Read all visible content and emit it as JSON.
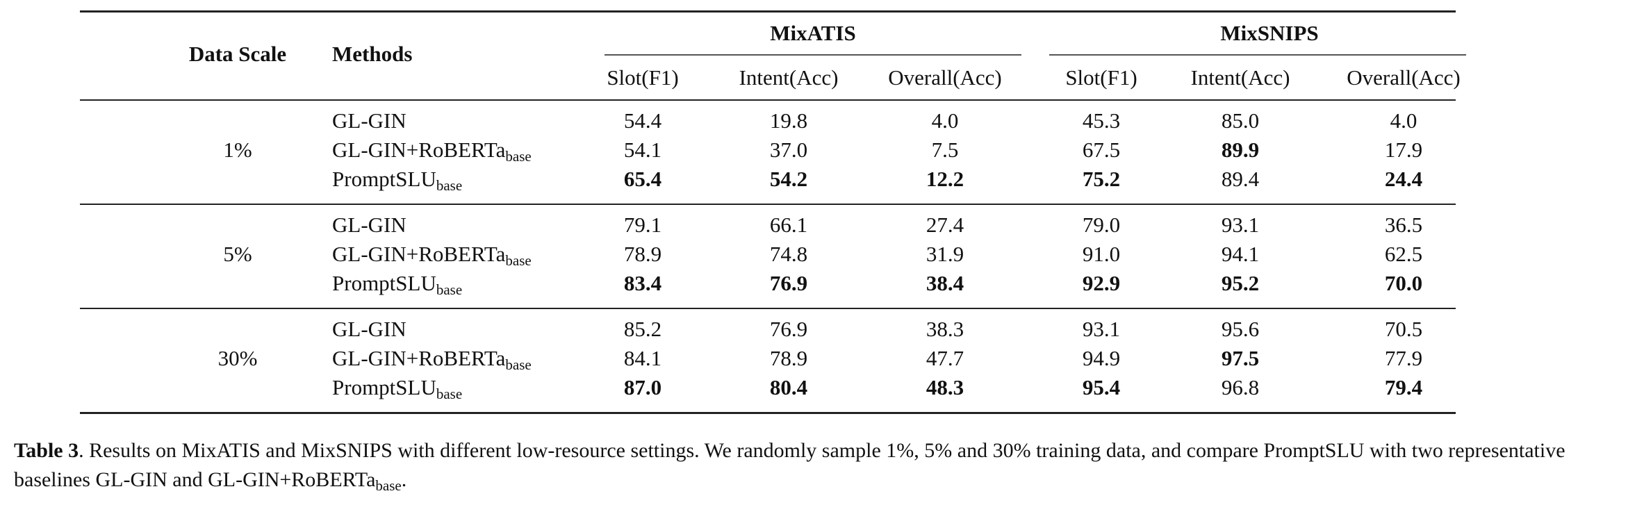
{
  "table": {
    "header": {
      "data_scale": "Data Scale",
      "methods": "Methods",
      "groups": [
        "MixATIS",
        "MixSNIPS"
      ],
      "metrics": [
        "Slot(F1)",
        "Intent(Acc)",
        "Overall(Acc)",
        "Slot(F1)",
        "Intent(Acc)",
        "Overall(Acc)"
      ]
    },
    "blocks": [
      {
        "scale": "1%",
        "rows": [
          {
            "method": "GL-GIN",
            "sub": "",
            "values": [
              "54.4",
              "19.8",
              "4.0",
              "45.3",
              "85.0",
              "4.0"
            ],
            "bold": [
              false,
              false,
              false,
              false,
              false,
              false
            ]
          },
          {
            "method": "GL-GIN+RoBERTa",
            "sub": "base",
            "values": [
              "54.1",
              "37.0",
              "7.5",
              "67.5",
              "89.9",
              "17.9"
            ],
            "bold": [
              false,
              false,
              false,
              false,
              true,
              false
            ]
          },
          {
            "method": "PromptSLU",
            "sub": "base",
            "values": [
              "65.4",
              "54.2",
              "12.2",
              "75.2",
              "89.4",
              "24.4"
            ],
            "bold": [
              true,
              true,
              true,
              true,
              false,
              true
            ]
          }
        ]
      },
      {
        "scale": "5%",
        "rows": [
          {
            "method": "GL-GIN",
            "sub": "",
            "values": [
              "79.1",
              "66.1",
              "27.4",
              "79.0",
              "93.1",
              "36.5"
            ],
            "bold": [
              false,
              false,
              false,
              false,
              false,
              false
            ]
          },
          {
            "method": "GL-GIN+RoBERTa",
            "sub": "base",
            "values": [
              "78.9",
              "74.8",
              "31.9",
              "91.0",
              "94.1",
              "62.5"
            ],
            "bold": [
              false,
              false,
              false,
              false,
              false,
              false
            ]
          },
          {
            "method": "PromptSLU",
            "sub": "base",
            "values": [
              "83.4",
              "76.9",
              "38.4",
              "92.9",
              "95.2",
              "70.0"
            ],
            "bold": [
              true,
              true,
              true,
              true,
              true,
              true
            ]
          }
        ]
      },
      {
        "scale": "30%",
        "rows": [
          {
            "method": "GL-GIN",
            "sub": "",
            "values": [
              "85.2",
              "76.9",
              "38.3",
              "93.1",
              "95.6",
              "70.5"
            ],
            "bold": [
              false,
              false,
              false,
              false,
              false,
              false
            ]
          },
          {
            "method": "GL-GIN+RoBERTa",
            "sub": "base",
            "values": [
              "84.1",
              "78.9",
              "47.7",
              "94.9",
              "97.5",
              "77.9"
            ],
            "bold": [
              false,
              false,
              false,
              false,
              true,
              false
            ]
          },
          {
            "method": "PromptSLU",
            "sub": "base",
            "values": [
              "87.0",
              "80.4",
              "48.3",
              "95.4",
              "96.8",
              "79.4"
            ],
            "bold": [
              true,
              true,
              true,
              true,
              false,
              true
            ]
          }
        ]
      }
    ]
  },
  "caption": {
    "label": "Table 3",
    "text": ".  Results on MixATIS and MixSNIPS with different low-resource settings. We randomly sample 1%, 5% and 30% training data, and compare PromptSLU with two representative baselines GL-GIN and GL-GIN+RoBERTa",
    "sub": "base",
    "end": "."
  }
}
